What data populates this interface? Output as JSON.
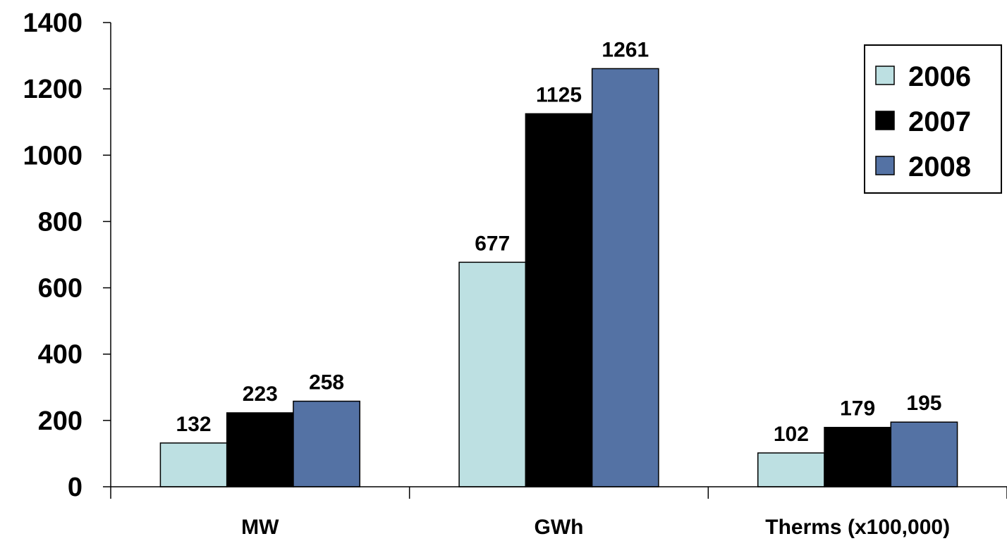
{
  "chart_data": {
    "type": "bar",
    "categories": [
      "MW",
      "GWh",
      "Therms (x100,000)"
    ],
    "series": [
      {
        "name": "2006",
        "values": [
          132,
          677,
          102
        ],
        "color": "#bde0e2"
      },
      {
        "name": "2007",
        "values": [
          223,
          1125,
          179
        ],
        "color": "#000000"
      },
      {
        "name": "2008",
        "values": [
          258,
          1261,
          195
        ],
        "color": "#5472a4"
      }
    ],
    "y_ticks": [
      "0",
      "200",
      "400",
      "600",
      "800",
      "1000",
      "1200",
      "1400"
    ],
    "ylim": [
      0,
      1400
    ],
    "grid": false,
    "legend_position": "top-right",
    "data_labels": true
  }
}
